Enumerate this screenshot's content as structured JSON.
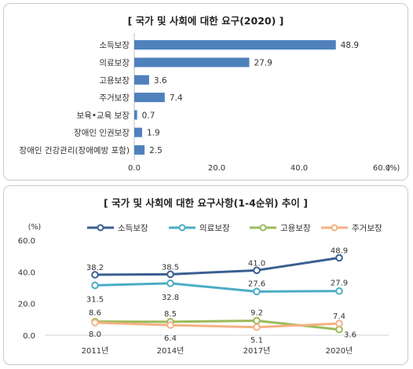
{
  "chart_data": [
    {
      "type": "bar",
      "title": "[ 국가 및 사회에 대한 요구(2020) ]",
      "categories": [
        "소득보장",
        "의료보장",
        "고용보장",
        "주거보장",
        "보육•교육 보장",
        "장애인 인권보장",
        "장애인 건강관리(장애예방 포함)"
      ],
      "values": [
        48.9,
        27.9,
        3.6,
        7.4,
        0.7,
        1.9,
        2.5
      ],
      "value_labels": [
        "48.9",
        "27.9",
        "3.6",
        "7.4",
        "0.7",
        "1.9",
        "2.5"
      ],
      "xlim": [
        0,
        60
      ],
      "ticks": [
        "0.0",
        "20.0",
        "40.0",
        "60.0"
      ],
      "tick_values": [
        0,
        20,
        40,
        60
      ],
      "unit": "(%)",
      "bar_color": "#4f81bd",
      "grid": false
    },
    {
      "type": "line",
      "title": "[ 국가 및 사회에 대한 요구사항(1-4순위) 추이 ]",
      "x": [
        "2011년",
        "2014년",
        "2017년",
        "2020년"
      ],
      "ylim": [
        0,
        60
      ],
      "yticks": [
        "0.0",
        "20.0",
        "40.0",
        "60.0"
      ],
      "ytick_values": [
        0,
        20,
        40,
        60
      ],
      "unit": "(%)",
      "legend_position": "top",
      "series": [
        {
          "name": "소득보장",
          "values": [
            38.2,
            38.5,
            41.0,
            48.9
          ],
          "labels": [
            "38.2",
            "38.5",
            "41.0",
            "48.9"
          ],
          "color": "#3b5f91"
        },
        {
          "name": "의료보장",
          "values": [
            31.5,
            32.8,
            27.6,
            27.9
          ],
          "labels": [
            "31.5",
            "32.8",
            "27.6",
            "27.9"
          ],
          "color": "#4bacc6"
        },
        {
          "name": "고용보장",
          "values": [
            8.6,
            8.5,
            9.2,
            3.6
          ],
          "labels": [
            "8.6",
            "8.5",
            "9.2",
            "3.6"
          ],
          "color": "#9bbb59"
        },
        {
          "name": "주거보장",
          "values": [
            8.0,
            6.4,
            5.1,
            7.4
          ],
          "labels": [
            "8.0",
            "6.4",
            "5.1",
            "7.4"
          ],
          "color": "#f4b183"
        }
      ]
    }
  ]
}
